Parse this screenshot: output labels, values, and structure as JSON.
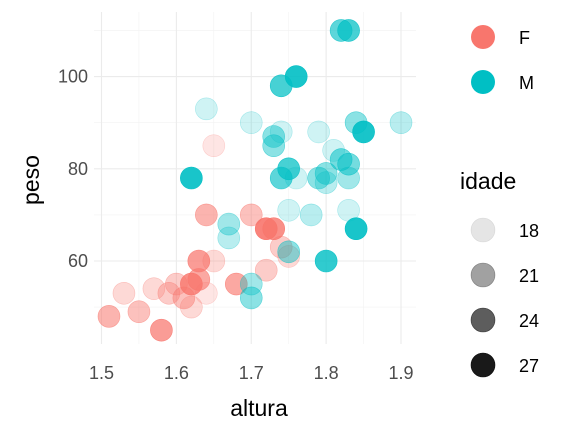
{
  "chart_data": {
    "type": "scatter",
    "xlabel": "altura",
    "ylabel": "peso",
    "xlim": [
      1.49,
      1.92
    ],
    "ylim": [
      42,
      114
    ],
    "x_ticks": [
      1.5,
      1.6,
      1.7,
      1.8,
      1.9
    ],
    "x_tick_labels": [
      "1.5",
      "1.6",
      "1.7",
      "1.8",
      "1.9"
    ],
    "y_ticks": [
      60,
      80,
      100
    ],
    "y_tick_labels": [
      "60",
      "80",
      "100"
    ],
    "grid": true,
    "legend_position": "right",
    "color_legend": {
      "entries": [
        {
          "label": "F",
          "color": "#F8766D"
        },
        {
          "label": "M",
          "color": "#00BFC4"
        }
      ]
    },
    "alpha_legend": {
      "title": "idade",
      "entries": [
        {
          "label": "18",
          "value": 18
        },
        {
          "label": "21",
          "value": 21
        },
        {
          "label": "24",
          "value": 24
        },
        {
          "label": "27",
          "value": 27
        }
      ],
      "range": [
        18,
        27
      ]
    },
    "series": [
      {
        "name": "F",
        "color": "#F8766D",
        "points": [
          {
            "x": 1.51,
            "y": 48,
            "idade": 23
          },
          {
            "x": 1.53,
            "y": 53,
            "idade": 20
          },
          {
            "x": 1.55,
            "y": 49,
            "idade": 22
          },
          {
            "x": 1.57,
            "y": 54,
            "idade": 20
          },
          {
            "x": 1.58,
            "y": 45,
            "idade": 25
          },
          {
            "x": 1.59,
            "y": 53,
            "idade": 21
          },
          {
            "x": 1.6,
            "y": 55,
            "idade": 21
          },
          {
            "x": 1.61,
            "y": 52,
            "idade": 22
          },
          {
            "x": 1.62,
            "y": 55,
            "idade": 26
          },
          {
            "x": 1.62,
            "y": 50,
            "idade": 20
          },
          {
            "x": 1.63,
            "y": 56,
            "idade": 24
          },
          {
            "x": 1.63,
            "y": 60,
            "idade": 25
          },
          {
            "x": 1.64,
            "y": 53,
            "idade": 19
          },
          {
            "x": 1.64,
            "y": 70,
            "idade": 23
          },
          {
            "x": 1.65,
            "y": 60,
            "idade": 20
          },
          {
            "x": 1.65,
            "y": 85,
            "idade": 19
          },
          {
            "x": 1.68,
            "y": 55,
            "idade": 24
          },
          {
            "x": 1.7,
            "y": 70,
            "idade": 22
          },
          {
            "x": 1.72,
            "y": 58,
            "idade": 21
          },
          {
            "x": 1.72,
            "y": 67,
            "idade": 27
          },
          {
            "x": 1.73,
            "y": 67,
            "idade": 26
          },
          {
            "x": 1.74,
            "y": 63,
            "idade": 21
          },
          {
            "x": 1.75,
            "y": 61,
            "idade": 20
          }
        ]
      },
      {
        "name": "M",
        "color": "#00BFC4",
        "points": [
          {
            "x": 1.62,
            "y": 78,
            "idade": 27
          },
          {
            "x": 1.64,
            "y": 93,
            "idade": 19
          },
          {
            "x": 1.67,
            "y": 68,
            "idade": 21
          },
          {
            "x": 1.67,
            "y": 65,
            "idade": 20
          },
          {
            "x": 1.7,
            "y": 90,
            "idade": 19
          },
          {
            "x": 1.7,
            "y": 55,
            "idade": 21
          },
          {
            "x": 1.7,
            "y": 52,
            "idade": 22
          },
          {
            "x": 1.73,
            "y": 87,
            "idade": 22
          },
          {
            "x": 1.73,
            "y": 85,
            "idade": 22
          },
          {
            "x": 1.74,
            "y": 98,
            "idade": 25
          },
          {
            "x": 1.74,
            "y": 88,
            "idade": 19
          },
          {
            "x": 1.74,
            "y": 78,
            "idade": 24
          },
          {
            "x": 1.75,
            "y": 80,
            "idade": 25
          },
          {
            "x": 1.75,
            "y": 71,
            "idade": 19
          },
          {
            "x": 1.75,
            "y": 62,
            "idade": 22
          },
          {
            "x": 1.76,
            "y": 100,
            "idade": 27
          },
          {
            "x": 1.76,
            "y": 78,
            "idade": 19
          },
          {
            "x": 1.78,
            "y": 70,
            "idade": 20
          },
          {
            "x": 1.79,
            "y": 88,
            "idade": 19
          },
          {
            "x": 1.79,
            "y": 78,
            "idade": 22
          },
          {
            "x": 1.8,
            "y": 79,
            "idade": 22
          },
          {
            "x": 1.8,
            "y": 77,
            "idade": 20
          },
          {
            "x": 1.8,
            "y": 60,
            "idade": 26
          },
          {
            "x": 1.81,
            "y": 84,
            "idade": 19
          },
          {
            "x": 1.82,
            "y": 110,
            "idade": 24
          },
          {
            "x": 1.82,
            "y": 82,
            "idade": 23
          },
          {
            "x": 1.83,
            "y": 110,
            "idade": 25
          },
          {
            "x": 1.83,
            "y": 81,
            "idade": 23
          },
          {
            "x": 1.83,
            "y": 78,
            "idade": 21
          },
          {
            "x": 1.83,
            "y": 71,
            "idade": 19
          },
          {
            "x": 1.84,
            "y": 90,
            "idade": 22
          },
          {
            "x": 1.84,
            "y": 67,
            "idade": 27
          },
          {
            "x": 1.85,
            "y": 88,
            "idade": 27
          },
          {
            "x": 1.9,
            "y": 90,
            "idade": 20
          }
        ]
      }
    ]
  }
}
